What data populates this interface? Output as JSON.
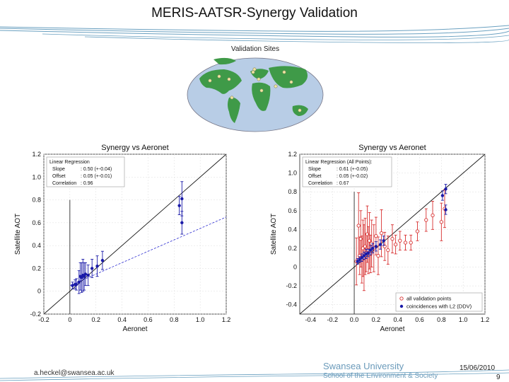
{
  "slide": {
    "title": "MERIS-AATSR-Synergy Validation",
    "email": "a.heckel@swansea.ac.uk",
    "university": "Swansea University",
    "school": "School of the Environment & Society",
    "date": "15/06/2010",
    "page_number": "9"
  },
  "map": {
    "title": "Validation Sites",
    "ocean_color": "#b8cde6",
    "land_color": "#3f9a48"
  },
  "chart_data": [
    {
      "type": "scatter",
      "title": "Synergy vs Aeronet",
      "xlabel": "Aeronet",
      "ylabel": "Satellite AOT",
      "xlim": [
        -0.2,
        1.2
      ],
      "ylim": [
        -0.2,
        1.2
      ],
      "xticks": [
        "-0.2",
        "0",
        "0.2",
        "0.4",
        "0.6",
        "0.8",
        "1.0",
        "1.2"
      ],
      "yticks": [
        "-0.2",
        "0",
        "0.2",
        "0.4",
        "0.6",
        "0.8",
        "1.0",
        "1.2"
      ],
      "legend": {
        "header": "Linear Regression",
        "rows": [
          {
            "label": "Slope",
            "value": ": 0.50 (+-0.04)"
          },
          {
            "label": "Offset",
            "value": ": 0.05 (+-0.01)"
          },
          {
            "label": "Correlation",
            "value": ": 0.96"
          }
        ]
      },
      "regression": {
        "slope": 0.5,
        "offset": 0.05
      },
      "points_color": "#1a1aa8",
      "series": [
        {
          "name": "coincidences",
          "x": [
            0.02,
            0.04,
            0.05,
            0.07,
            0.08,
            0.09,
            0.1,
            0.11,
            0.12,
            0.14,
            0.17,
            0.21,
            0.25,
            0.84,
            0.86,
            0.86
          ],
          "y": [
            0.05,
            0.06,
            0.06,
            0.08,
            0.13,
            0.12,
            0.14,
            0.13,
            0.15,
            0.14,
            0.2,
            0.22,
            0.27,
            0.75,
            0.81,
            0.6
          ],
          "err": [
            0.03,
            0.04,
            0.05,
            0.1,
            0.12,
            0.13,
            0.14,
            0.12,
            0.1,
            0.09,
            0.08,
            0.09,
            0.08,
            0.08,
            0.15,
            0.1
          ]
        }
      ]
    },
    {
      "type": "scatter",
      "title": "Synergy vs Aeronet",
      "xlabel": "Aeronet",
      "ylabel": "Satellite AOT",
      "xlim": [
        -0.5,
        1.2
      ],
      "ylim": [
        -0.5,
        1.2
      ],
      "xticks": [
        "-0.4",
        "-0.2",
        "0.0",
        "0.2",
        "0.4",
        "0.6",
        "0.8",
        "1.0",
        "1.2"
      ],
      "yticks": [
        "-0.4",
        "-0.2",
        "0",
        "0.2",
        "0.4",
        "0.6",
        "0.8",
        "1.0",
        "1.2"
      ],
      "legend": {
        "header": "Linear Regression (All Points):",
        "rows": [
          {
            "label": "Slope",
            "value": ": 0.61 (+-0.05)"
          },
          {
            "label": "Offset",
            "value": ": 0.05 (+-0.02)"
          },
          {
            "label": "Correlation",
            "value": ": 0.67"
          }
        ]
      },
      "legend_bottom": [
        "all validation points",
        "coincidences with L2 (DDV)"
      ],
      "series": [
        {
          "name": "all validation points",
          "color": "#d83030",
          "x": [
            0.02,
            0.04,
            0.05,
            0.06,
            0.07,
            0.08,
            0.09,
            0.1,
            0.11,
            0.12,
            0.13,
            0.14,
            0.15,
            0.16,
            0.18,
            0.2,
            0.22,
            0.25,
            0.28,
            0.31,
            0.35,
            0.38,
            0.42,
            0.47,
            0.52,
            0.58,
            0.66,
            0.72,
            0.8,
            0.83
          ],
          "y": [
            0.06,
            0.44,
            0.12,
            0.3,
            0.08,
            0.2,
            0.1,
            0.22,
            0.15,
            0.35,
            0.18,
            0.28,
            0.14,
            0.25,
            0.2,
            0.33,
            0.12,
            0.36,
            0.22,
            0.18,
            0.3,
            0.24,
            0.28,
            0.26,
            0.26,
            0.38,
            0.5,
            0.55,
            0.48,
            0.62
          ],
          "err": [
            0.25,
            0.35,
            0.2,
            0.3,
            0.25,
            0.3,
            0.35,
            0.3,
            0.2,
            0.3,
            0.25,
            0.3,
            0.2,
            0.25,
            0.25,
            0.2,
            0.2,
            0.25,
            0.15,
            0.15,
            0.15,
            0.1,
            0.1,
            0.08,
            0.08,
            0.1,
            0.12,
            0.15,
            0.2,
            0.2
          ]
        },
        {
          "name": "coincidences with L2 (DDV)",
          "color": "#1a1aa8",
          "x": [
            0.03,
            0.05,
            0.07,
            0.09,
            0.11,
            0.13,
            0.15,
            0.17,
            0.2,
            0.24,
            0.27,
            0.81,
            0.84,
            0.84
          ],
          "y": [
            0.06,
            0.08,
            0.1,
            0.12,
            0.14,
            0.15,
            0.18,
            0.2,
            0.22,
            0.24,
            0.28,
            0.76,
            0.83,
            0.61
          ],
          "err": [
            0.03,
            0.03,
            0.04,
            0.04,
            0.05,
            0.04,
            0.05,
            0.05,
            0.05,
            0.05,
            0.05,
            0.05,
            0.05,
            0.05
          ]
        }
      ]
    }
  ]
}
